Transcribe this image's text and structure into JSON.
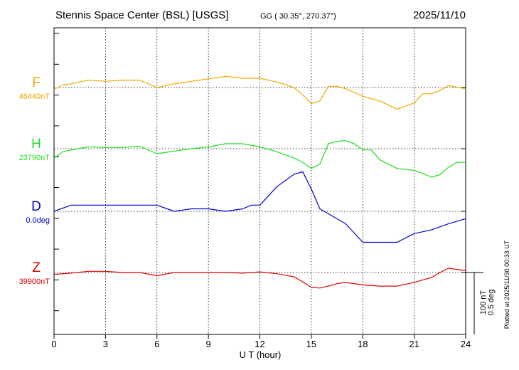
{
  "header": {
    "station": "Stennis Space Center (BSL)  [USGS]",
    "coords": "GG ( 30.35°, 270.37°)",
    "date": "2025/11/10"
  },
  "plotted_note": "Plotted at 2025/11/30 00:33 UT",
  "scale": {
    "nt": "100 nT",
    "deg": "0.5 deg"
  },
  "colors": {
    "F": "#f0a800",
    "H": "#22dd22",
    "D": "#0000cc",
    "Z": "#dd0000"
  },
  "chart_data": {
    "type": "line",
    "xlabel": "U T (hour)",
    "xlim": [
      0,
      24
    ],
    "xticks": [
      "0",
      "3",
      "6",
      "9",
      "12",
      "15",
      "18",
      "21",
      "24"
    ],
    "series": [
      {
        "name": "F",
        "baseline": "46440nT",
        "unit": "nT",
        "x": [
          0,
          0.5,
          1,
          2,
          3,
          4,
          5,
          6,
          7,
          8,
          9,
          10,
          11,
          12,
          13,
          14,
          14.5,
          15,
          15.5,
          16,
          16.5,
          17,
          18,
          18.5,
          19,
          20,
          21,
          21.5,
          22,
          22.5,
          23,
          24
        ],
        "values": [
          -3,
          4,
          6,
          12,
          10,
          12,
          12,
          0,
          6,
          10,
          14,
          18,
          15,
          15,
          9,
          0,
          -12,
          -26,
          -22,
          2,
          2,
          -2,
          -14,
          -18,
          -22,
          -35,
          -25,
          -10,
          -10,
          -5,
          3,
          -2
        ]
      },
      {
        "name": "H",
        "baseline": "23790nT",
        "unit": "nT",
        "x": [
          0,
          0.5,
          1,
          2,
          3,
          4,
          5,
          6,
          7,
          8,
          9,
          10,
          11,
          12,
          13,
          14,
          14.5,
          15,
          15.5,
          16,
          16.5,
          17,
          17.5,
          18,
          18.5,
          19,
          20,
          21,
          21.5,
          22,
          22.5,
          23,
          23.5,
          24
        ],
        "values": [
          -15,
          -5,
          -2,
          3,
          2,
          2,
          4,
          -8,
          -4,
          0,
          3,
          8,
          8,
          3,
          -5,
          -15,
          -22,
          -32,
          -25,
          8,
          12,
          13,
          8,
          -2,
          -2,
          -18,
          -32,
          -35,
          -40,
          -46,
          -42,
          -30,
          -22,
          -22
        ]
      },
      {
        "name": "D",
        "baseline": "0.0deg",
        "unit": "deg",
        "x": [
          0,
          1,
          2,
          3,
          4,
          5,
          6,
          7,
          8,
          9,
          10,
          11,
          11.5,
          12,
          13,
          14,
          14.5,
          15,
          15.5,
          16,
          17,
          18,
          19,
          20,
          21,
          22,
          23,
          24
        ],
        "values": [
          0,
          0.05,
          0.05,
          0.05,
          0.05,
          0.05,
          0.05,
          0.0,
          0.02,
          0.02,
          0.0,
          0.02,
          0.05,
          0.05,
          0.2,
          0.3,
          0.32,
          0.18,
          0.02,
          -0.02,
          -0.1,
          -0.25,
          -0.25,
          -0.25,
          -0.18,
          -0.15,
          -0.1,
          -0.06
        ]
      },
      {
        "name": "Z",
        "baseline": "39900nT",
        "unit": "nT",
        "x": [
          0,
          1,
          2,
          3,
          4,
          5,
          6,
          7,
          8,
          9,
          10,
          11,
          12,
          13,
          14,
          14.5,
          15,
          15.5,
          16,
          16.5,
          17,
          18,
          19,
          20,
          21,
          21.5,
          22,
          22.5,
          23,
          24
        ],
        "values": [
          -3,
          -1,
          2,
          2,
          0,
          0,
          -5,
          0,
          0,
          0,
          0,
          -1,
          1,
          -2,
          -7,
          -15,
          -24,
          -25,
          -22,
          -18,
          -16,
          -20,
          -22,
          -22,
          -16,
          -12,
          -8,
          0,
          7,
          3
        ]
      }
    ]
  }
}
